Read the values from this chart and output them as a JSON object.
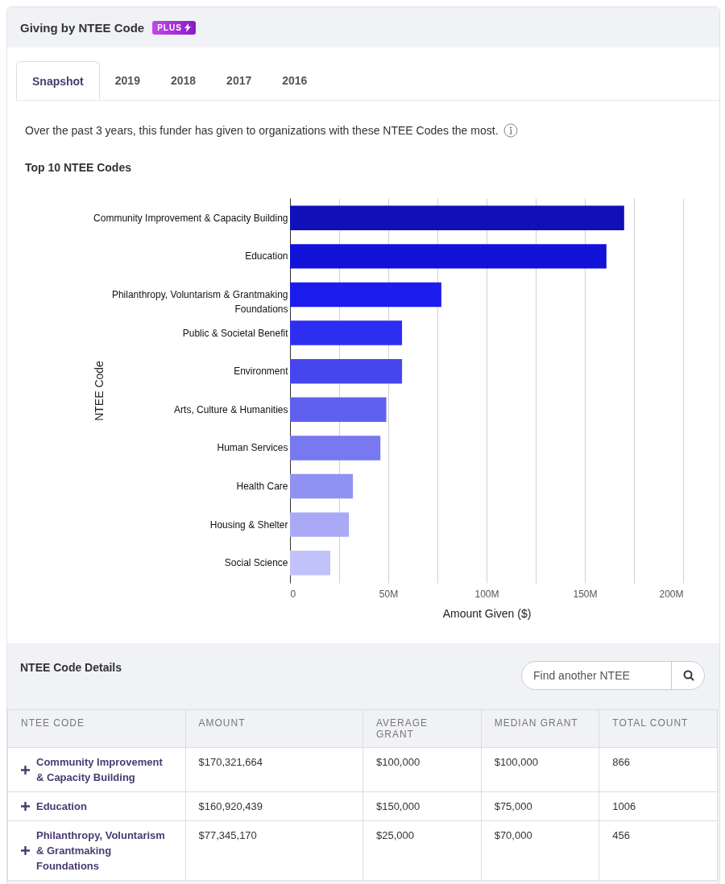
{
  "chart_data": [
    {
      "type": "bar",
      "orientation": "horizontal",
      "title": "Top 10 NTEE Codes",
      "xlabel": "Amount Given ($)",
      "ylabel": "NTEE Code",
      "annotations": [
        "Giving by NTEE Code",
        "PLUS",
        "Snapshot",
        "2019",
        "2018",
        "2017",
        "2016",
        "Over the past 3 years, this funder has given to organizations with these NTEE Codes the most."
      ],
      "categories": [
        "Community Improvement & Capacity Building",
        "Education",
        "Philanthropy, Voluntarism & Grantmaking Foundations",
        "Public & Societal Benefit",
        "Environment",
        "Arts, Culture & Humanities",
        "Human Services",
        "Health Care",
        "Housing & Shelter",
        "Social Science"
      ],
      "values": [
        170000000,
        161000000,
        77000000,
        57000000,
        57000000,
        49000000,
        46000000,
        32000000,
        30000000,
        20500000
      ],
      "colors": [
        "#100fb8",
        "#1212d8",
        "#1c1cee",
        "#2e2ef0",
        "#4646ef",
        "#6060ee",
        "#7878f0",
        "#9191f3",
        "#a9a9f6",
        "#c2c2fa"
      ],
      "xlim": [
        0,
        200000000
      ],
      "xticks": [
        {
          "value": 0,
          "label": "0"
        },
        {
          "value": 25000000,
          "label": null
        },
        {
          "value": 50000000,
          "label": "50M"
        },
        {
          "value": 75000000,
          "label": null
        },
        {
          "value": 100000000,
          "label": "100M"
        },
        {
          "value": 125000000,
          "label": null
        },
        {
          "value": 150000000,
          "label": "150M"
        },
        {
          "value": 175000000,
          "label": null
        },
        {
          "value": 200000000,
          "label": "200M"
        }
      ],
      "grid": "x",
      "legend": false
    },
    {
      "type": "other",
      "title": "NTEE Code Details",
      "annotations": [
        "Find another NTEE",
        "NTEE CODE",
        "AMOUNT",
        "AVERAGE GRANT",
        "MEDIAN GRANT",
        "TOTAL COUNT",
        "Community Improvement & Capacity Building",
        "$170,321,664",
        "$100,000",
        "$100,000",
        "866",
        "Education",
        "$160,920,439",
        "$150,000",
        "$75,000",
        "1006",
        "Philanthropy, Voluntarism & Grantmaking Foundations",
        "$77,345,170",
        "$25,000",
        "$70,000",
        "456"
      ]
    }
  ]
}
